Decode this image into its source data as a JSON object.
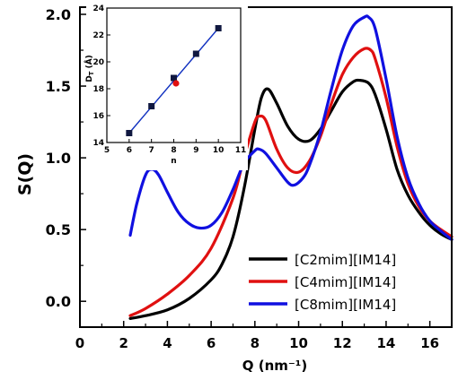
{
  "colors": {
    "black": "#000000",
    "red": "#e01010",
    "blue": "#1010e0",
    "inset_line": "#1030c0",
    "inset_marker": "#101840",
    "inset_red_marker": "#e01010"
  },
  "chart_data": [
    {
      "type": "line",
      "xlabel": "Q (nm⁻¹)",
      "ylabel": "S(Q)",
      "xlim": [
        0,
        17
      ],
      "ylim": [
        -0.18,
        2.05
      ],
      "xticks": [
        0,
        2,
        4,
        6,
        8,
        10,
        12,
        14,
        16
      ],
      "xtick_labels": [
        "0",
        "2",
        "4",
        "6",
        "8",
        "10",
        "12",
        "14",
        "16"
      ],
      "yticks": [
        0.0,
        0.5,
        1.0,
        1.5,
        2.0
      ],
      "ytick_labels": [
        "0.0",
        "0.5",
        "1.0",
        "1.5",
        "2.0"
      ],
      "grid": false,
      "legend_position": "bottom-right",
      "series": [
        {
          "name": "[C2mim][IM14]",
          "color": "#000000",
          "x": [
            2.3,
            3,
            4,
            5,
            6,
            6.5,
            7,
            7.5,
            8,
            8.3,
            8.6,
            9,
            9.5,
            10,
            10.5,
            11,
            11.5,
            12,
            12.5,
            12.8,
            13.2,
            13.5,
            14,
            14.5,
            15,
            15.5,
            16,
            16.5,
            17
          ],
          "y": [
            -0.12,
            -0.1,
            -0.06,
            0.02,
            0.15,
            0.26,
            0.45,
            0.78,
            1.2,
            1.42,
            1.48,
            1.38,
            1.22,
            1.13,
            1.12,
            1.2,
            1.33,
            1.46,
            1.53,
            1.54,
            1.52,
            1.44,
            1.2,
            0.92,
            0.74,
            0.62,
            0.53,
            0.47,
            0.43
          ]
        },
        {
          "name": "[C4mim][IM14]",
          "color": "#e01010",
          "x": [
            2.3,
            3,
            4,
            5,
            6,
            7,
            7.5,
            8,
            8.2,
            8.5,
            9,
            9.5,
            10,
            10.5,
            11,
            11.5,
            12,
            12.5,
            13,
            13.3,
            13.5,
            14,
            14.5,
            15,
            15.5,
            16,
            16.5,
            17
          ],
          "y": [
            -0.1,
            -0.05,
            0.05,
            0.18,
            0.37,
            0.72,
            1.0,
            1.25,
            1.29,
            1.26,
            1.06,
            0.93,
            0.9,
            0.98,
            1.15,
            1.38,
            1.58,
            1.7,
            1.76,
            1.75,
            1.69,
            1.42,
            1.08,
            0.82,
            0.66,
            0.56,
            0.5,
            0.45
          ]
        },
        {
          "name": "[C8mim][IM14]",
          "color": "#1010e0",
          "x": [
            2.3,
            2.6,
            3,
            3.3,
            3.6,
            4,
            4.5,
            5,
            5.5,
            6,
            6.5,
            7,
            7.5,
            8,
            8.2,
            8.5,
            9,
            9.5,
            9.8,
            10.2,
            10.5,
            11,
            11.5,
            12,
            12.5,
            13,
            13.2,
            13.5,
            14,
            14.5,
            15,
            15.5,
            16,
            16.5,
            17
          ],
          "y": [
            0.46,
            0.68,
            0.88,
            0.92,
            0.88,
            0.76,
            0.62,
            0.54,
            0.51,
            0.53,
            0.62,
            0.78,
            0.96,
            1.05,
            1.06,
            1.03,
            0.93,
            0.83,
            0.81,
            0.86,
            0.95,
            1.18,
            1.48,
            1.75,
            1.92,
            1.98,
            1.98,
            1.9,
            1.55,
            1.15,
            0.86,
            0.68,
            0.56,
            0.49,
            0.43
          ]
        }
      ]
    },
    {
      "type": "scatter",
      "xlabel": "n",
      "ylabel": "D",
      "ylabel_sub": "T",
      "ylabel_unit": " (Å)",
      "xlim": [
        5,
        11
      ],
      "ylim": [
        14,
        24
      ],
      "xticks": [
        5,
        6,
        7,
        8,
        9,
        10,
        11
      ],
      "xtick_labels": [
        "5",
        "6",
        "7",
        "8",
        "9",
        "10",
        "11"
      ],
      "yticks": [
        14,
        16,
        18,
        20,
        22,
        24
      ],
      "ytick_labels": [
        "14",
        "16",
        "18",
        "20",
        "22",
        "24"
      ],
      "grid": false,
      "series": [
        {
          "name": "fit",
          "kind": "line",
          "x": [
            6,
            10
          ],
          "y": [
            14.7,
            22.5
          ]
        },
        {
          "name": "data",
          "kind": "square",
          "x": [
            6,
            7,
            8,
            9,
            10
          ],
          "y": [
            14.7,
            16.7,
            18.8,
            20.6,
            22.5
          ]
        },
        {
          "name": "point",
          "kind": "circle",
          "x": [
            8.1
          ],
          "y": [
            18.4
          ]
        }
      ]
    }
  ]
}
